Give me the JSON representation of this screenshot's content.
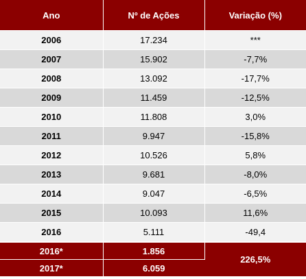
{
  "header": {
    "col1": "Ano",
    "col2": "Nº de Ações",
    "col3": "Variação (%)"
  },
  "rows": [
    {
      "year": "2006",
      "shares": "17.234",
      "variation": "***"
    },
    {
      "year": "2007",
      "shares": "15.902",
      "variation": "-7,7%"
    },
    {
      "year": "2008",
      "shares": "13.092",
      "variation": "-17,7%"
    },
    {
      "year": "2009",
      "shares": "11.459",
      "variation": "-12,5%"
    },
    {
      "year": "2010",
      "shares": "11.808",
      "variation": "3,0%"
    },
    {
      "year": "2011",
      "shares": "9.947",
      "variation": "-15,8%"
    },
    {
      "year": "2012",
      "shares": "10.526",
      "variation": "5,8%"
    },
    {
      "year": "2013",
      "shares": "9.681",
      "variation": "-8,0%"
    },
    {
      "year": "2014",
      "shares": "9.047",
      "variation": "-6,5%"
    },
    {
      "year": "2015",
      "shares": "10.093",
      "variation": "11,6%"
    },
    {
      "year": "2016",
      "shares": "5.111",
      "variation": "-49,4"
    }
  ],
  "footer": {
    "rows": [
      {
        "year": "2016*",
        "shares": "1.856"
      },
      {
        "year": "2017*",
        "shares": "6.059"
      }
    ],
    "variation": "226,5%"
  },
  "colors": {
    "header_bg": "#8b0000",
    "row_light": "#f2f2f2",
    "row_dark": "#d9d9d9"
  }
}
